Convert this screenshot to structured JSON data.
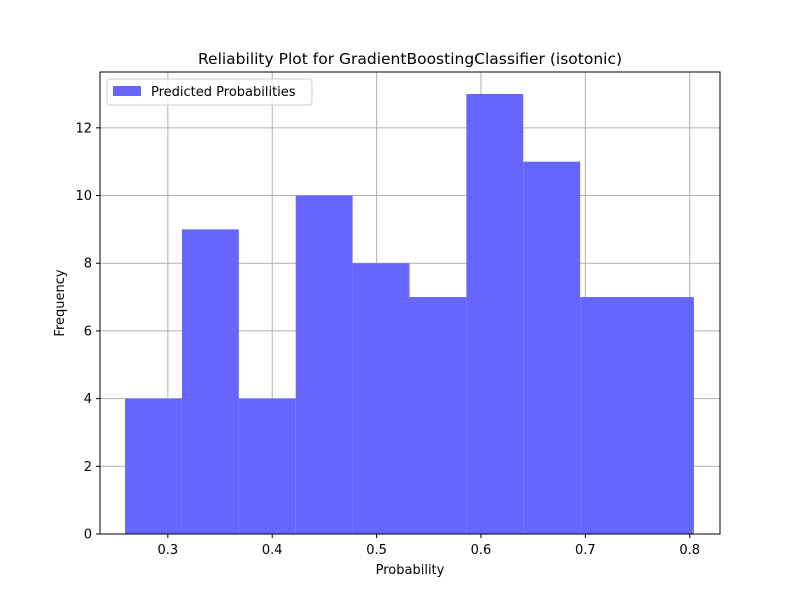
{
  "chart_data": {
    "type": "bar",
    "title": "Reliability Plot for GradientBoostingClassifier (isotonic)",
    "xlabel": "Probability",
    "ylabel": "Frequency",
    "xlim": [
      0.235,
      0.829
    ],
    "ylim": [
      0,
      13.65
    ],
    "grid": true,
    "legend_position": "top-left",
    "series": [
      {
        "name": "Predicted Probabilities",
        "color": "#6666ff",
        "bin_edges": [
          0.259,
          0.3135,
          0.368,
          0.4225,
          0.477,
          0.5315,
          0.586,
          0.6405,
          0.695,
          0.7495,
          0.804
        ],
        "values": [
          4,
          9,
          4,
          10,
          8,
          7,
          13,
          11,
          7,
          7
        ]
      }
    ],
    "x_ticks": [
      {
        "value": 0.3,
        "label": "0.3"
      },
      {
        "value": 0.4,
        "label": "0.4"
      },
      {
        "value": 0.5,
        "label": "0.5"
      },
      {
        "value": 0.6,
        "label": "0.6"
      },
      {
        "value": 0.7,
        "label": "0.7"
      },
      {
        "value": 0.8,
        "label": "0.8"
      }
    ],
    "y_ticks": [
      {
        "value": 0,
        "label": "0"
      },
      {
        "value": 2,
        "label": "2"
      },
      {
        "value": 4,
        "label": "4"
      },
      {
        "value": 6,
        "label": "6"
      },
      {
        "value": 8,
        "label": "8"
      },
      {
        "value": 10,
        "label": "10"
      },
      {
        "value": 12,
        "label": "12"
      }
    ]
  }
}
